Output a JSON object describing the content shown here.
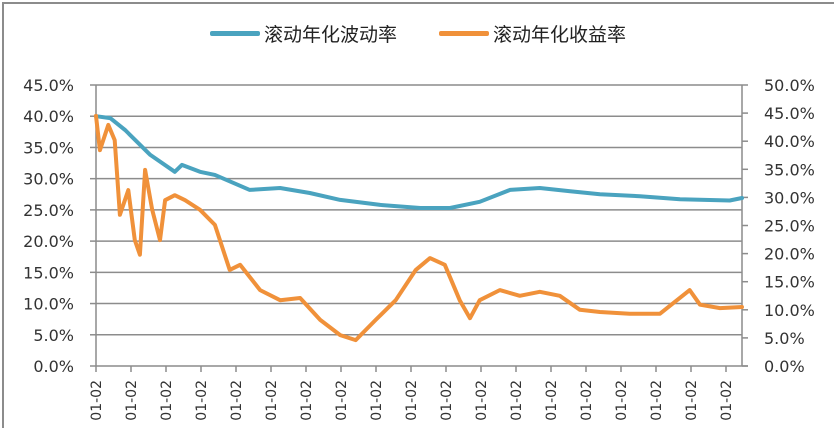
{
  "chart_data": {
    "type": "line",
    "title": "",
    "legend_position": "top",
    "grid": true,
    "xlabel": "",
    "ylabel": "",
    "y2label": "",
    "x_tick_labels": [
      "01-02",
      "01-02",
      "01-02",
      "01-02",
      "01-02",
      "01-02",
      "01-02",
      "01-02",
      "01-02",
      "01-02",
      "01-02",
      "01-02",
      "01-02",
      "01-02",
      "01-02",
      "01-02",
      "01-02",
      "01-02",
      "01-02"
    ],
    "y_left": {
      "ticks": [
        "0.0%",
        "5.0%",
        "10.0%",
        "15.0%",
        "20.0%",
        "25.0%",
        "30.0%",
        "35.0%",
        "40.0%",
        "45.0%"
      ],
      "range": [
        0,
        45
      ]
    },
    "y_right": {
      "ticks": [
        "0.0%",
        "5.0%",
        "10.0%",
        "15.0%",
        "20.0%",
        "25.0%",
        "30.0%",
        "35.0%",
        "40.0%",
        "45.0%",
        "50.0%"
      ],
      "range": [
        0,
        50
      ]
    },
    "series": [
      {
        "name": "滚动年化波动率",
        "axis": "left",
        "color": "#4aa3bf",
        "x_frac": [
          0.0,
          0.022,
          0.045,
          0.084,
          0.122,
          0.133,
          0.161,
          0.184,
          0.238,
          0.285,
          0.331,
          0.378,
          0.44,
          0.502,
          0.548,
          0.594,
          0.641,
          0.687,
          0.734,
          0.78,
          0.842,
          0.904,
          0.981,
          1.0
        ],
        "values": [
          40.0,
          39.7,
          37.8,
          33.8,
          31.1,
          32.2,
          31.1,
          30.6,
          28.2,
          28.5,
          27.7,
          26.6,
          25.8,
          25.3,
          25.3,
          26.3,
          28.2,
          28.5,
          28.0,
          27.5,
          27.2,
          26.7,
          26.5,
          26.9
        ]
      },
      {
        "name": "滚动年化收益率",
        "axis": "right",
        "color": "#f0913a",
        "x_frac": [
          0.0,
          0.006,
          0.019,
          0.029,
          0.037,
          0.05,
          0.06,
          0.068,
          0.076,
          0.087,
          0.099,
          0.107,
          0.122,
          0.138,
          0.161,
          0.184,
          0.207,
          0.223,
          0.254,
          0.285,
          0.316,
          0.347,
          0.378,
          0.402,
          0.433,
          0.464,
          0.495,
          0.517,
          0.54,
          0.563,
          0.579,
          0.594,
          0.625,
          0.656,
          0.687,
          0.718,
          0.749,
          0.78,
          0.826,
          0.873,
          0.919,
          0.935,
          0.966,
          1.0
        ],
        "values": [
          44.5,
          38.4,
          42.9,
          40.2,
          26.9,
          31.3,
          22.4,
          19.8,
          34.9,
          27.8,
          22.4,
          29.5,
          30.4,
          29.5,
          27.8,
          25.1,
          17.1,
          18.0,
          13.5,
          11.7,
          12.1,
          8.2,
          5.5,
          4.6,
          8.2,
          11.7,
          17.1,
          19.2,
          18.0,
          11.7,
          8.5,
          11.7,
          13.5,
          12.5,
          13.2,
          12.5,
          10.0,
          9.6,
          9.3,
          9.3,
          13.5,
          10.9,
          10.3,
          10.5
        ]
      }
    ]
  },
  "legend": {
    "items": [
      {
        "label": "滚动年化波动率",
        "color": "#4aa3bf"
      },
      {
        "label": "滚动年化收益率",
        "color": "#f0913a"
      }
    ]
  }
}
